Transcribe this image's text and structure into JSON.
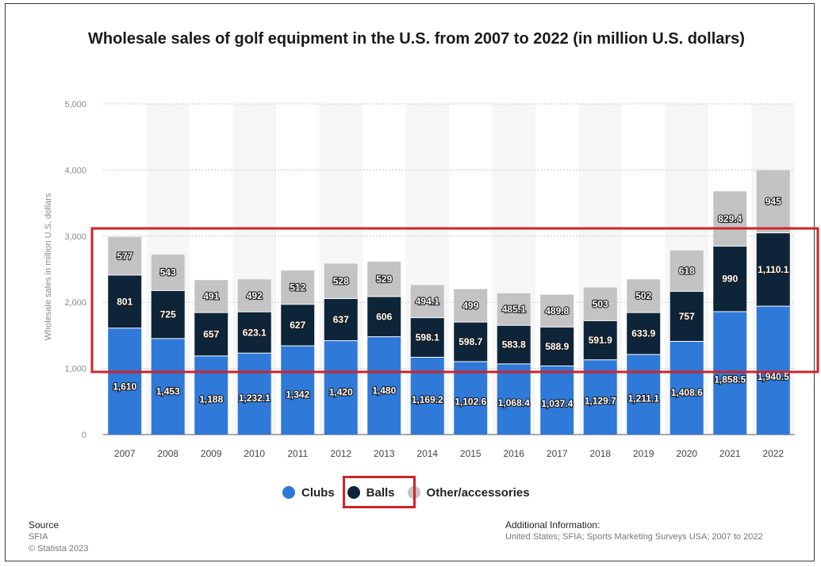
{
  "chart_data": {
    "type": "bar",
    "stacked": true,
    "title": "Wholesale sales of golf equipment in the U.S. from 2007 to 2022 (in million U.S. dollars)",
    "xlabel": "",
    "ylabel": "Wholesale sales in million U.S. dollars",
    "ylim": [
      0,
      5000
    ],
    "yticks": [
      "0",
      "1,000",
      "2,000",
      "3,000",
      "4,000",
      "5,000"
    ],
    "categories": [
      "2007",
      "2008",
      "2009",
      "2010",
      "2011",
      "2012",
      "2013",
      "2014",
      "2015",
      "2016",
      "2017",
      "2018",
      "2019",
      "2020",
      "2021",
      "2022"
    ],
    "series": [
      {
        "name": "Clubs",
        "color": "#2f79d8",
        "values": [
          1610,
          1453,
          1188,
          1232.1,
          1342,
          1420,
          1480,
          1169.2,
          1102.6,
          1068.4,
          1037.4,
          1129.7,
          1211.1,
          1408.6,
          1858.5,
          1940.5
        ],
        "labels": [
          "1,610",
          "1,453",
          "1,188",
          "1,232.1",
          "1,342",
          "1,420",
          "1,480",
          "1,169.2",
          "1,102.6",
          "1,068.4",
          "1,037.4",
          "1,129.7",
          "1,211.1",
          "1,408.6",
          "1,858.5",
          "1,940.5"
        ]
      },
      {
        "name": "Balls",
        "color": "#0e2439",
        "values": [
          801,
          725,
          657,
          623.1,
          627,
          637,
          606,
          598.1,
          598.7,
          583.8,
          588.9,
          591.9,
          633.9,
          757,
          990,
          1110.1
        ],
        "labels": [
          "801",
          "725",
          "657",
          "623.1",
          "627",
          "637",
          "606",
          "598.1",
          "598.7",
          "583.8",
          "588.9",
          "591.9",
          "633.9",
          "757",
          "990",
          "1,110.1"
        ]
      },
      {
        "name": "Other/accessories",
        "color": "#c3c3c3",
        "values": [
          577,
          543,
          491,
          492,
          512,
          528,
          529,
          494.1,
          499,
          485.1,
          489.8,
          503,
          502,
          618,
          829.4,
          945
        ],
        "labels": [
          "577",
          "543",
          "491",
          "492",
          "512",
          "528",
          "529",
          "494.1",
          "499",
          "485.1",
          "489.8",
          "503",
          "502",
          "618",
          "829.4",
          "945"
        ]
      }
    ],
    "legend_position": "bottom",
    "grid": true
  },
  "source": {
    "heading": "Source",
    "lines": [
      "SFIA",
      "© Statista 2023"
    ]
  },
  "additional_info": {
    "heading": "Additional Information:",
    "text": "United States; SFIA; Sports Marketing Surveys USA; 2007 to 2022"
  },
  "highlight_color": "#d0232a"
}
